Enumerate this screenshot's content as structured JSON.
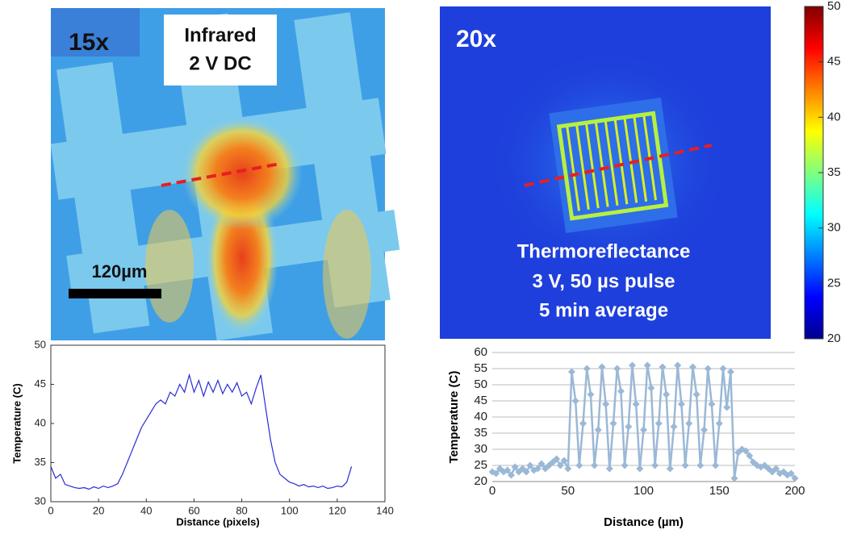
{
  "images": {
    "left": {
      "magnification": "15x",
      "label_line1": "Infrared",
      "label_line2": "2 V DC",
      "scale_bar": "120µm"
    },
    "right": {
      "magnification": "20x",
      "label_line1": "Thermoreflectance",
      "label_line2": "3 V, 50 µs pulse",
      "label_line3": "5 min average"
    }
  },
  "colorbar": {
    "lim": [
      20,
      50
    ],
    "ticks": [
      20,
      25,
      30,
      35,
      40,
      45,
      50
    ]
  },
  "chart_data": [
    {
      "type": "line",
      "x_label": "Distance (pixels)",
      "y_label": "Temperature (C)",
      "xlim": [
        0,
        140
      ],
      "xticks": [
        0,
        20,
        40,
        60,
        80,
        100,
        120,
        140
      ],
      "ylim": [
        30,
        50
      ],
      "yticks": [
        30,
        35,
        40,
        45,
        50
      ],
      "grid": false,
      "box": true,
      "marker": "none",
      "color": "#2b2bd6",
      "x": [
        0,
        2,
        4,
        6,
        8,
        10,
        12,
        14,
        16,
        18,
        20,
        22,
        24,
        26,
        28,
        30,
        32,
        34,
        36,
        38,
        40,
        42,
        44,
        46,
        48,
        50,
        52,
        54,
        56,
        58,
        60,
        62,
        64,
        66,
        68,
        70,
        72,
        74,
        76,
        78,
        80,
        82,
        84,
        86,
        88,
        90,
        92,
        94,
        96,
        98,
        100,
        102,
        104,
        106,
        108,
        110,
        112,
        114,
        116,
        118,
        120,
        122,
        124,
        126
      ],
      "values": [
        34.5,
        33,
        33.5,
        32.2,
        32,
        31.8,
        31.7,
        31.8,
        31.6,
        31.9,
        31.7,
        32,
        31.8,
        32,
        32.3,
        33.5,
        35,
        36.5,
        38,
        39.5,
        40.5,
        41.5,
        42.5,
        43,
        42.5,
        44,
        43.5,
        45,
        44,
        46.2,
        44,
        45.5,
        43.5,
        45.3,
        44,
        45.5,
        43.8,
        45,
        44,
        45.2,
        43.5,
        44,
        42.5,
        44.5,
        46.2,
        42,
        38,
        35,
        33.5,
        33,
        32.5,
        32.3,
        32,
        32.2,
        31.9,
        32,
        31.8,
        32,
        31.7,
        31.8,
        32,
        31.9,
        32.5,
        34.5
      ]
    },
    {
      "type": "line",
      "x_label": "Distance (µm)",
      "y_label": "Temperature (C)",
      "xlim": [
        0,
        200
      ],
      "xticks": [
        0,
        50,
        100,
        150,
        200
      ],
      "ylim": [
        20,
        60
      ],
      "yticks": [
        20,
        25,
        30,
        35,
        40,
        45,
        50,
        55,
        60
      ],
      "grid": true,
      "box": false,
      "marker": "diamond",
      "color": "#9bb8d6",
      "x": [
        0,
        2.5,
        5,
        7.5,
        10,
        12.5,
        15,
        17.5,
        20,
        22.5,
        25,
        27.5,
        30,
        32.5,
        35,
        37.5,
        40,
        42.5,
        45,
        47.5,
        50,
        52.5,
        55,
        57.5,
        60,
        62.5,
        65,
        67.5,
        70,
        72.5,
        75,
        77.5,
        80,
        82.5,
        85,
        87.5,
        90,
        92.5,
        95,
        97.5,
        100,
        102.5,
        105,
        107.5,
        110,
        112.5,
        115,
        117.5,
        120,
        122.5,
        125,
        127.5,
        130,
        132.5,
        135,
        137.5,
        140,
        142.5,
        145,
        147.5,
        150,
        152.5,
        155,
        157.5,
        160,
        162.5,
        165,
        167.5,
        170,
        172.5,
        175,
        177.5,
        180,
        182.5,
        185,
        187.5,
        190,
        192.5,
        195,
        197.5,
        200
      ],
      "values": [
        23,
        22.5,
        24,
        23,
        23.5,
        22,
        24.5,
        23,
        24,
        23,
        25,
        23.5,
        24,
        25.5,
        24,
        25,
        26,
        27,
        25,
        26.5,
        24,
        54,
        45,
        25,
        38,
        55,
        47,
        25,
        36,
        55.5,
        44,
        24,
        38,
        55,
        48,
        25,
        37,
        56,
        44,
        24,
        36,
        56,
        49,
        25,
        38,
        55.5,
        47,
        24,
        37,
        56,
        44,
        25,
        38,
        55.5,
        47,
        25,
        36,
        55,
        44,
        25,
        38,
        55,
        43,
        54,
        21,
        29,
        30,
        29.5,
        28,
        26,
        25,
        24.5,
        25,
        24,
        23,
        24,
        22.5,
        23,
        22,
        22.5,
        21
      ]
    }
  ]
}
